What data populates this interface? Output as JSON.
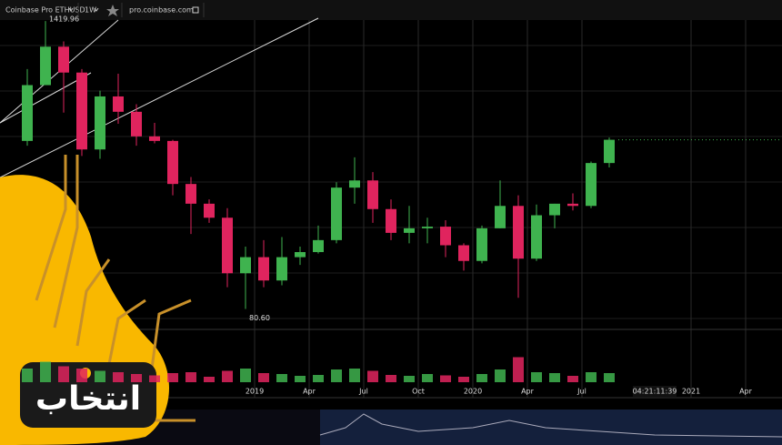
{
  "chart_data": {
    "type": "candlestick",
    "toolbar": {
      "symbol": "Coinbase Pro ETHUSD",
      "interval": "1W",
      "site": "pro.coinbase.com"
    },
    "x": [
      "2017-12",
      "2018-01",
      "2018-02",
      "2018-03",
      "2018-04",
      "2018-05",
      "2018-06",
      "2018-07",
      "2018-08",
      "2018-09",
      "2018-10",
      "2018-11",
      "2018-12",
      "2019-01",
      "2019-02",
      "2019-03",
      "2019-04",
      "2019-05",
      "2019-06",
      "2019-07",
      "2019-08",
      "2019-09",
      "2019-10",
      "2019-11",
      "2019-12",
      "2020-01",
      "2020-02",
      "2020-03",
      "2020-04",
      "2020-05",
      "2020-06",
      "2020-07",
      "2020-08"
    ],
    "open": [
      430,
      750,
      1100,
      850,
      395,
      670,
      575,
      450,
      430,
      280,
      230,
      200,
      115,
      135,
      107,
      135,
      142,
      160,
      270,
      290,
      218,
      172,
      180,
      183,
      152,
      130,
      180,
      225,
      133,
      205,
      230,
      225,
      345
    ],
    "high": [
      880,
      1419.96,
      1160,
      880,
      710,
      840,
      620,
      515,
      435,
      300,
      240,
      220,
      150,
      160,
      165,
      150,
      185,
      285,
      365,
      315,
      240,
      225,
      200,
      195,
      155,
      185,
      290,
      250,
      228,
      230,
      255,
      350,
      445
    ],
    "low": [
      410,
      750,
      570,
      370,
      360,
      510,
      410,
      420,
      250,
      170,
      190,
      100,
      80.6,
      100,
      102,
      125,
      140,
      155,
      230,
      190,
      160,
      155,
      155,
      135,
      118,
      127,
      180,
      90,
      130,
      180,
      215,
      220,
      330
    ],
    "close": [
      750,
      1100,
      850,
      395,
      670,
      575,
      450,
      430,
      280,
      230,
      200,
      115,
      135,
      107,
      135,
      142,
      160,
      270,
      290,
      218,
      172,
      180,
      183,
      152,
      130,
      180,
      225,
      133,
      205,
      230,
      225,
      345,
      435
    ],
    "volume": [
      30,
      45,
      35,
      30,
      25,
      22,
      18,
      15,
      20,
      22,
      12,
      25,
      30,
      20,
      18,
      14,
      16,
      28,
      30,
      25,
      16,
      14,
      18,
      15,
      12,
      18,
      28,
      55,
      22,
      20,
      14,
      22,
      20
    ],
    "up_color": "#3fb34f",
    "down_color": "#e0245e",
    "log_scale": true,
    "ylim": [
      70,
      1600
    ],
    "xlim": [
      "2017-11",
      "2021-06"
    ],
    "xticks": [
      {
        "value": "2019-01",
        "label": "2019"
      },
      {
        "value": "2019-04",
        "label": "Apr"
      },
      {
        "value": "2019-07",
        "label": "Jul"
      },
      {
        "value": "2019-10",
        "label": "Oct"
      },
      {
        "value": "2020-01",
        "label": "2020"
      },
      {
        "value": "2020-04",
        "label": "Apr"
      },
      {
        "value": "2020-07",
        "label": "Jul"
      },
      {
        "value": "2021-01",
        "label": "2021"
      },
      {
        "value": "2021-04",
        "label": "Apr"
      }
    ],
    "annotations": {
      "high_label": "1419.96",
      "low_label": "80.60",
      "countdown": "04:21:11:39"
    },
    "logo_text": "انتخاب"
  }
}
